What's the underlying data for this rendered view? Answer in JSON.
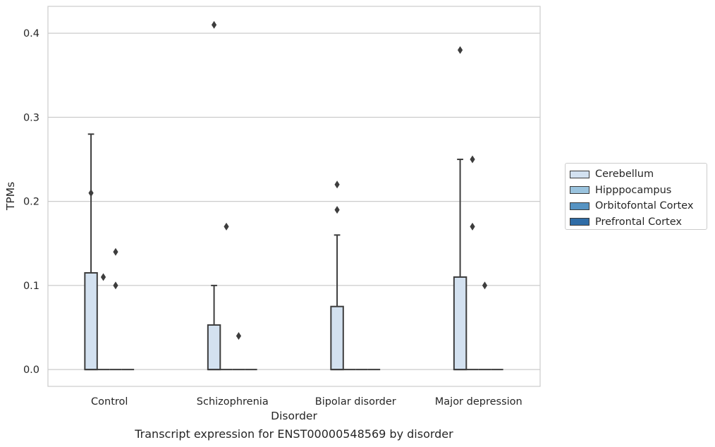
{
  "chart_data": {
    "type": "box",
    "caption": "Transcript expression for ENST00000548569 by disorder",
    "xlabel": "Disorder",
    "ylabel": "TPMs",
    "ylim": [
      -0.02,
      0.432
    ],
    "yticks": [
      "0.0",
      "0.1",
      "0.2",
      "0.3",
      "0.4"
    ],
    "ytick_values": [
      0.0,
      0.1,
      0.2,
      0.3,
      0.4
    ],
    "grid": "horizontal",
    "legend_position": "outside-right",
    "categories": [
      "Control",
      "Schizophrenia",
      "Bipolar disorder",
      "Major depression"
    ],
    "series": [
      {
        "name": "Cerebellum",
        "color": "#d3e1f0",
        "boxes": [
          {
            "q1": 0.0,
            "median": 0.0,
            "q3": 0.115,
            "whisker_low": 0.0,
            "whisker_high": 0.28,
            "outliers": [
              0.21
            ]
          },
          {
            "q1": 0.0,
            "median": 0.0,
            "q3": 0.053,
            "whisker_low": 0.0,
            "whisker_high": 0.1,
            "outliers": [
              0.41
            ]
          },
          {
            "q1": 0.0,
            "median": 0.0,
            "q3": 0.075,
            "whisker_low": 0.0,
            "whisker_high": 0.16,
            "outliers": [
              0.22,
              0.19
            ]
          },
          {
            "q1": 0.0,
            "median": 0.0,
            "q3": 0.11,
            "whisker_low": 0.0,
            "whisker_high": 0.25,
            "outliers": [
              0.38
            ]
          }
        ]
      },
      {
        "name": "Hipppocampus",
        "color": "#9ac3de",
        "boxes": [
          {
            "q1": 0.0,
            "median": 0.0,
            "q3": 0.0,
            "whisker_low": 0.0,
            "whisker_high": 0.0,
            "outliers": [
              0.11
            ]
          },
          {
            "q1": 0.0,
            "median": 0.0,
            "q3": 0.0,
            "whisker_low": 0.0,
            "whisker_high": 0.0,
            "outliers": [
              0.17
            ]
          },
          {
            "q1": 0.0,
            "median": 0.0,
            "q3": 0.0,
            "whisker_low": 0.0,
            "whisker_high": 0.0,
            "outliers": []
          },
          {
            "q1": 0.0,
            "median": 0.0,
            "q3": 0.0,
            "whisker_low": 0.0,
            "whisker_high": 0.0,
            "outliers": [
              0.25,
              0.17
            ]
          }
        ]
      },
      {
        "name": "Orbitofontal Cortex",
        "color": "#5693c2",
        "boxes": [
          {
            "q1": 0.0,
            "median": 0.0,
            "q3": 0.0,
            "whisker_low": 0.0,
            "whisker_high": 0.0,
            "outliers": [
              0.14,
              0.1
            ]
          },
          {
            "q1": 0.0,
            "median": 0.0,
            "q3": 0.0,
            "whisker_low": 0.0,
            "whisker_high": 0.0,
            "outliers": [
              0.04
            ]
          },
          {
            "q1": 0.0,
            "median": 0.0,
            "q3": 0.0,
            "whisker_low": 0.0,
            "whisker_high": 0.0,
            "outliers": []
          },
          {
            "q1": 0.0,
            "median": 0.0,
            "q3": 0.0,
            "whisker_low": 0.0,
            "whisker_high": 0.0,
            "outliers": [
              0.1
            ]
          }
        ]
      },
      {
        "name": "Prefrontal Cortex",
        "color": "#2f6ca6",
        "boxes": [
          {
            "q1": 0.0,
            "median": 0.0,
            "q3": 0.0,
            "whisker_low": 0.0,
            "whisker_high": 0.0,
            "outliers": []
          },
          {
            "q1": 0.0,
            "median": 0.0,
            "q3": 0.0,
            "whisker_low": 0.0,
            "whisker_high": 0.0,
            "outliers": []
          },
          {
            "q1": 0.0,
            "median": 0.0,
            "q3": 0.0,
            "whisker_low": 0.0,
            "whisker_high": 0.0,
            "outliers": []
          },
          {
            "q1": 0.0,
            "median": 0.0,
            "q3": 0.0,
            "whisker_low": 0.0,
            "whisker_high": 0.0,
            "outliers": []
          }
        ]
      }
    ]
  }
}
